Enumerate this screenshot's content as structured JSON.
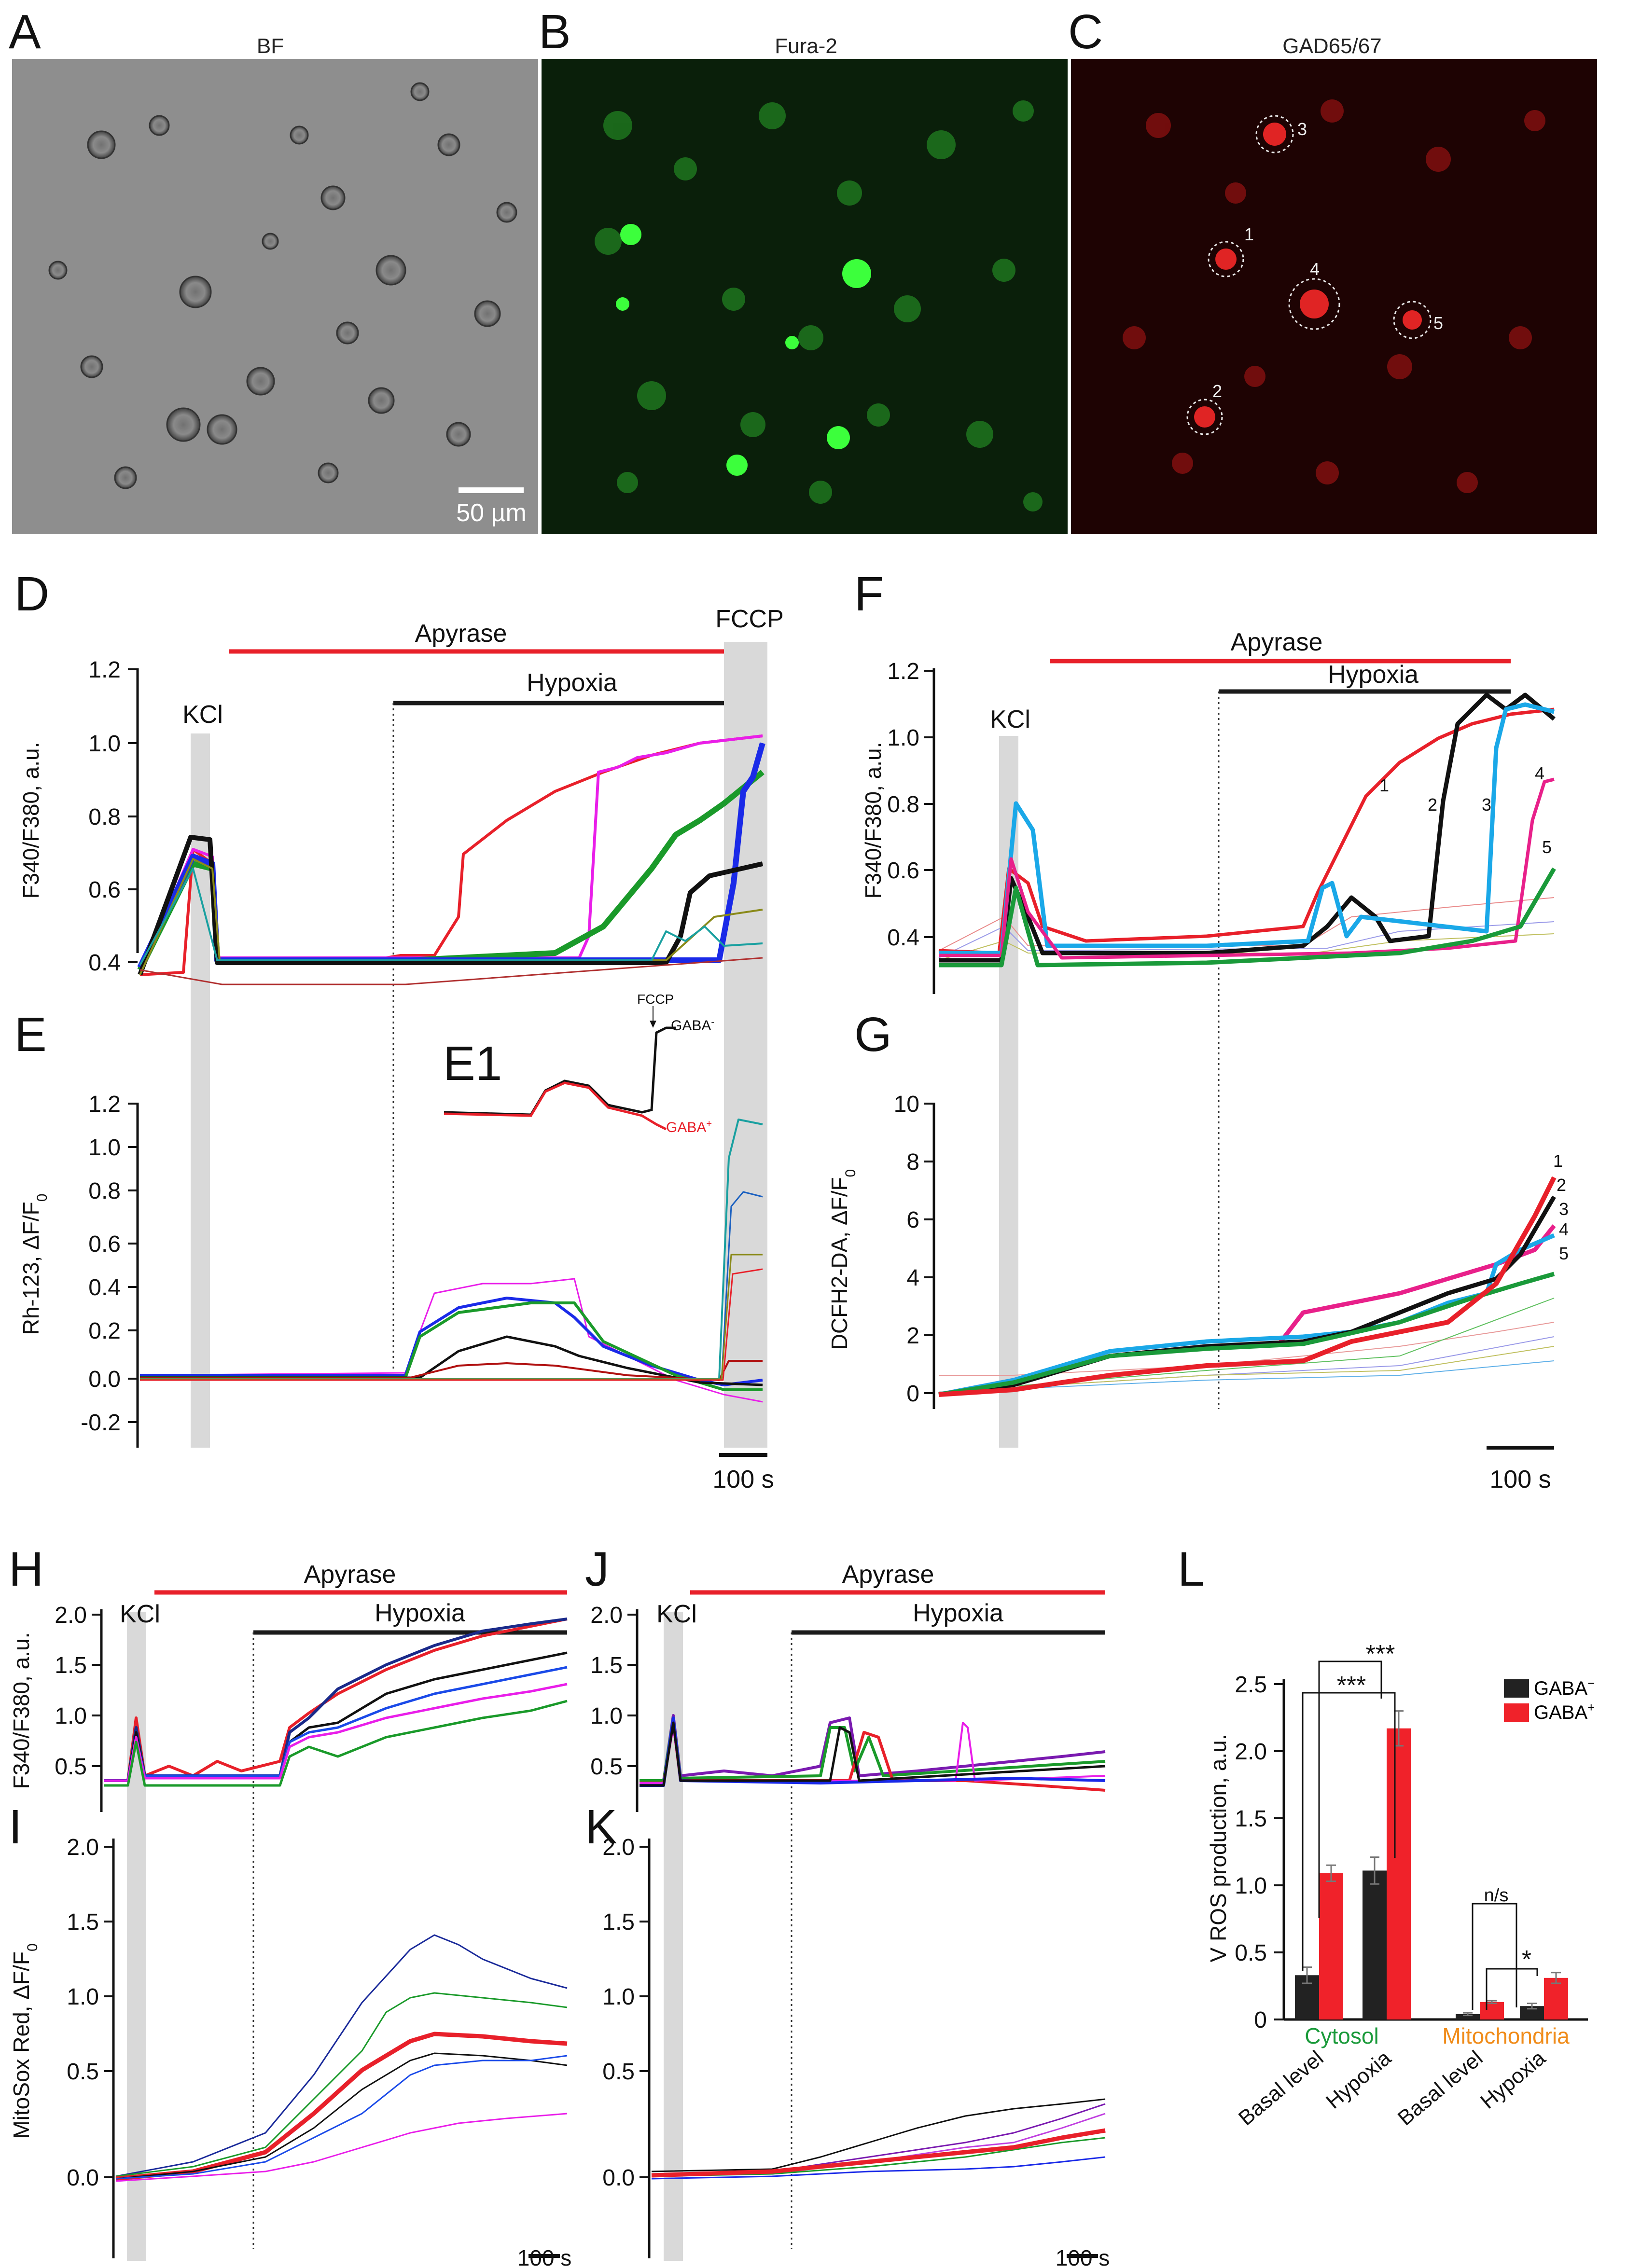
{
  "panels": {
    "A": {
      "letter": "A",
      "title": "BF",
      "scale_bar": "50 µm"
    },
    "B": {
      "letter": "B",
      "title": "Fura-2"
    },
    "C": {
      "letter": "C",
      "title": "GAD65/67",
      "cells": [
        "3",
        "1",
        "4",
        "5",
        "2"
      ]
    },
    "D": {
      "letter": "D",
      "ylabel": "F340/F380, a.u.",
      "yticks": [
        "1.2",
        "1.0",
        "0.8",
        "0.6",
        "0.4"
      ],
      "apyrase": "Apyrase",
      "hypoxia": "Hypoxia",
      "fccp": "FCCP",
      "kcl": "KCl"
    },
    "E": {
      "letter": "E",
      "ylabel_main": "Rh-123, ΔF/F",
      "ylabel_sub": "0",
      "yticks": [
        "1.2",
        "1.0",
        "0.8",
        "0.6",
        "0.4",
        "0.2",
        "0.0",
        "-0.2"
      ],
      "scale_bar": "100 s"
    },
    "E1": {
      "letter": "E1",
      "fccp": "FCCP",
      "gaba_neg": "GABA",
      "gaba_pos": "GABA",
      "neg_sup": "-",
      "pos_sup": "+"
    },
    "F": {
      "letter": "F",
      "ylabel": "F340/F380, a.u.",
      "yticks": [
        "1.2",
        "1.0",
        "0.8",
        "0.6",
        "0.4"
      ],
      "apyrase": "Apyrase",
      "hypoxia": "Hypoxia",
      "kcl": "KCl",
      "labels": [
        "1",
        "2",
        "3",
        "4",
        "5"
      ]
    },
    "G": {
      "letter": "G",
      "ylabel_main": "DCFH2-DA, ΔF/F",
      "ylabel_sub": "0",
      "yticks": [
        "10",
        "8",
        "6",
        "4",
        "2",
        "0"
      ],
      "labels": [
        "1",
        "2",
        "3",
        "4",
        "5"
      ],
      "scale_bar": "100 s"
    },
    "H": {
      "letter": "H",
      "ylabel": "F340/F380, a.u.",
      "yticks": [
        "2.0",
        "1.5",
        "1.0",
        "0.5"
      ],
      "apyrase": "Apyrase",
      "hypoxia": "Hypoxia",
      "kcl": "KCl"
    },
    "I": {
      "letter": "I",
      "ylabel_main": "MitoSox Red, ΔF/F",
      "ylabel_sub": "0",
      "yticks": [
        "2.0",
        "1.5",
        "1.0",
        "0.5",
        "0.0"
      ],
      "scale_bar": "100 s"
    },
    "J": {
      "letter": "J",
      "yticks": [
        "2.0",
        "1.5",
        "1.0",
        "0.5"
      ],
      "apyrase": "Apyrase",
      "hypoxia": "Hypoxia",
      "kcl": "KCl"
    },
    "K": {
      "letter": "K",
      "yticks": [
        "2.0",
        "1.5",
        "1.0",
        "0.5",
        "0.0"
      ],
      "scale_bar": "100 s"
    },
    "L": {
      "letter": "L"
    }
  },
  "colors": {
    "red": "#e8202a",
    "black": "#1a1a1a",
    "gray_band": "#d9d9d9",
    "green_text": "#1a9a3a",
    "orange_text": "#f08c1a"
  },
  "chart_data": {
    "type": "bar",
    "title": "",
    "ylabel": "V ROS production, a.u.",
    "ylim": [
      0,
      2.5
    ],
    "yticks": [
      "2.5",
      "2.0",
      "1.5",
      "1.0",
      "0.5",
      "0"
    ],
    "categories": [
      "Basal level",
      "Hypoxia",
      "Basal level",
      "Hypoxia"
    ],
    "groups": [
      {
        "name": "Cytosol",
        "color": "#1a9a3a"
      },
      {
        "name": "Mitochondria",
        "color": "#f08c1a"
      }
    ],
    "series": [
      {
        "name": "GABA",
        "sup": "−",
        "color": "#222222",
        "values": [
          0.33,
          1.11,
          0.04,
          0.1
        ],
        "errors": [
          0.06,
          0.1,
          0.01,
          0.02
        ]
      },
      {
        "name": "GABA",
        "sup": "+",
        "color": "#f0222a",
        "values": [
          1.09,
          2.17,
          0.13,
          0.31
        ],
        "errors": [
          0.06,
          0.13,
          0.01,
          0.04
        ]
      }
    ],
    "annotations": [
      "***",
      "***",
      "n/s",
      "*"
    ]
  }
}
